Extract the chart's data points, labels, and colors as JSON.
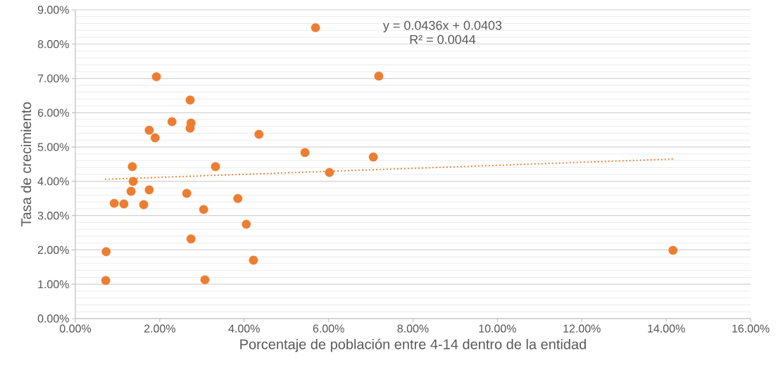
{
  "chart_data": {
    "type": "scatter",
    "xlabel": "Porcentaje de población entre 4-14 dentro de la entidad",
    "ylabel": "Tasa de crecimiento",
    "annotations": [
      "y = 0.0436x + 0.0403",
      "R² = 0.0044"
    ],
    "xlim": [
      0,
      0.16
    ],
    "ylim": [
      0,
      0.09
    ],
    "xticks": [
      {
        "value": 0,
        "label": "0.00%"
      },
      {
        "value": 0.02,
        "label": "2.00%"
      },
      {
        "value": 0.04,
        "label": "4.00%"
      },
      {
        "value": 0.06,
        "label": "6.00%"
      },
      {
        "value": 0.08,
        "label": "8.00%"
      },
      {
        "value": 0.1,
        "label": "10.00%"
      },
      {
        "value": 0.12,
        "label": "12.00%"
      },
      {
        "value": 0.14,
        "label": "14.00%"
      },
      {
        "value": 0.16,
        "label": "16.00%"
      }
    ],
    "yticks": [
      {
        "value": 0,
        "label": "0.00%"
      },
      {
        "value": 0.01,
        "label": "1.00%"
      },
      {
        "value": 0.02,
        "label": "2.00%"
      },
      {
        "value": 0.03,
        "label": "3.00%"
      },
      {
        "value": 0.04,
        "label": "4.00%"
      },
      {
        "value": 0.05,
        "label": "5.00%"
      },
      {
        "value": 0.06,
        "label": "6.00%"
      },
      {
        "value": 0.07,
        "label": "7.00%"
      },
      {
        "value": 0.08,
        "label": "8.00%"
      },
      {
        "value": 0.09,
        "label": "9.00%"
      }
    ],
    "grid": "y",
    "marker": "circle",
    "series": [
      {
        "type": "scatter",
        "color": "#ed7d31",
        "x": [
          0.0072,
          0.0073,
          0.0092,
          0.0115,
          0.0132,
          0.0135,
          0.0137,
          0.0162,
          0.0175,
          0.0175,
          0.0189,
          0.0192,
          0.0229,
          0.0264,
          0.0272,
          0.0272,
          0.0274,
          0.0274,
          0.0304,
          0.0307,
          0.0332,
          0.0385,
          0.0405,
          0.0422,
          0.0435,
          0.0544,
          0.0569,
          0.0602,
          0.0706,
          0.0719,
          0.1416
        ],
        "values": [
          0.0111,
          0.0195,
          0.0336,
          0.0334,
          0.0371,
          0.0443,
          0.04,
          0.0332,
          0.0375,
          0.0549,
          0.0527,
          0.0705,
          0.0574,
          0.0365,
          0.0637,
          0.0555,
          0.057,
          0.0232,
          0.0318,
          0.0113,
          0.0443,
          0.035,
          0.0275,
          0.017,
          0.0537,
          0.0484,
          0.0848,
          0.0426,
          0.0471,
          0.0707,
          0.0199
        ]
      },
      {
        "type": "line",
        "color": "#ed7d31",
        "line_style": "dotted",
        "marker": "none",
        "x": [
          0.0072,
          0.1416
        ],
        "values": [
          0.0406,
          0.0465
        ]
      }
    ]
  }
}
